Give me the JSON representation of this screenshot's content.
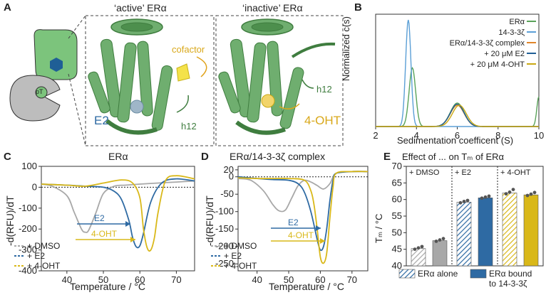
{
  "panels": {
    "A": {
      "label": "A",
      "active_title": "‘active’ ERα",
      "inactive_title": "‘inactive’ ERα",
      "cofactor": "cofactor",
      "e2": "E2",
      "h12_active": "h12",
      "h12_inactive": "h12",
      "ohot": "4-OHT",
      "pt": "pT"
    },
    "B": {
      "label": "B",
      "ylabel": "Normalized c(s)",
      "xlabel": "Sedimentation coefficent (S)",
      "xticks": [
        "2",
        "4",
        "6",
        "8",
        "10"
      ],
      "legend": [
        "ERα",
        "14-3-3ζ",
        "ERα/14-3-3ζ complex",
        "+ 20 μM E2",
        "+ 20 μM 4-OHT"
      ]
    },
    "C": {
      "label": "C",
      "title": "ERα",
      "ylabel": "-d(RFU)/dT",
      "xlabel": "Temperature / °C",
      "yticks": [
        "100",
        "0",
        "-100",
        "-200",
        "-300",
        "-400"
      ],
      "xticks": [
        "40",
        "50",
        "60",
        "70"
      ],
      "legend": [
        "+ DMSO",
        "+ E2",
        "+ 4-OHT"
      ],
      "arrow_e2": "E2",
      "arrow_ohot": "4-OHT"
    },
    "D": {
      "label": "D",
      "title": "ERα/14-3-3ζ complex",
      "ylabel": "-d(RFU)/dT",
      "xlabel": "Temperature / °C",
      "yticks": [
        "20",
        "0",
        "-50",
        "-100",
        "-150",
        "-200",
        "-250"
      ],
      "xticks": [
        "40",
        "50",
        "60",
        "70"
      ],
      "legend": [
        "+ DMSO",
        "+ E2",
        "+ 4-OHT"
      ],
      "arrow_e2": "E2",
      "arrow_ohot": "4-OHT"
    },
    "E": {
      "label": "E",
      "title": "Effect of ... on Tₘ of ERα",
      "ylabel": "Tₘ / °C",
      "yticks": [
        "70",
        "65",
        "60",
        "55",
        "50",
        "45",
        "40"
      ],
      "groups": [
        "+ DMSO",
        "+ E2",
        "+ 4-OHT"
      ],
      "legend_alone": "ERα alone",
      "legend_bound_1": "ERα bound",
      "legend_bound_2": "to 14-3-3ζ"
    }
  },
  "colors": {
    "gray": "#a8a8a8",
    "blue": "#2e6aa3",
    "yellow": "#d9b819",
    "green": "#5aa35a",
    "lightblue": "#5b9fd6",
    "orange": "#e0862a",
    "darkblue": "#1f5f96",
    "gold": "#c9a813"
  },
  "chart_data": [
    {
      "id": "B",
      "type": "line",
      "xlabel": "Sedimentation coefficent (S)",
      "ylabel": "Normalized c(s)",
      "xlim": [
        2,
        10
      ],
      "series": [
        {
          "name": "ERα",
          "peaks": [
            [
              3.8,
              0.55
            ],
            [
              6.0,
              0.22
            ],
            [
              10.0,
              0.28
            ]
          ]
        },
        {
          "name": "14-3-3ζ",
          "peaks": [
            [
              3.6,
              1.0
            ]
          ]
        },
        {
          "name": "ERα/14-3-3ζ complex",
          "peaks": [
            [
              6.0,
              0.2
            ]
          ]
        },
        {
          "name": "+ 20 μM E2",
          "peaks": [
            [
              6.0,
              0.21
            ]
          ]
        },
        {
          "name": "+ 20 μM 4-OHT",
          "peaks": [
            [
              6.1,
              0.2
            ]
          ]
        }
      ]
    },
    {
      "id": "C",
      "type": "line",
      "title": "ERα",
      "xlabel": "Temperature / °C",
      "ylabel": "-d(RFU)/dT",
      "xlim": [
        33,
        75
      ],
      "ylim": [
        -400,
        100
      ],
      "series": [
        {
          "name": "+ DMSO",
          "x": [
            33,
            36,
            40,
            42,
            44,
            45,
            46,
            48,
            50,
            53,
            56,
            60,
            65,
            70,
            75
          ],
          "y": [
            15,
            5,
            -40,
            -120,
            -200,
            -215,
            -205,
            -120,
            -30,
            5,
            10,
            15,
            20,
            25,
            30
          ]
        },
        {
          "name": "+ E2",
          "x": [
            33,
            40,
            45,
            50,
            53,
            55,
            57,
            58,
            59,
            60,
            61,
            63,
            66,
            70,
            75
          ],
          "y": [
            15,
            10,
            5,
            0,
            -20,
            -60,
            -160,
            -240,
            -285,
            -280,
            -220,
            -70,
            20,
            40,
            30
          ]
        },
        {
          "name": "+ 4-OHT",
          "x": [
            33,
            40,
            45,
            50,
            55,
            58,
            60,
            61,
            62,
            63,
            64,
            65,
            67,
            70,
            75
          ],
          "y": [
            15,
            10,
            5,
            20,
            35,
            20,
            -50,
            -200,
            -290,
            -300,
            -240,
            -120,
            30,
            55,
            40
          ]
        }
      ]
    },
    {
      "id": "D",
      "type": "line",
      "title": "ERα/14-3-3ζ complex",
      "xlabel": "Temperature / °C",
      "ylabel": "-d(RFU)/dT",
      "xlim": [
        34,
        75
      ],
      "ylim": [
        -270,
        30
      ],
      "series": [
        {
          "name": "+ DMSO",
          "x": [
            34,
            38,
            42,
            45,
            47,
            49,
            51,
            53,
            55,
            57,
            59,
            61,
            63,
            65,
            70,
            75
          ],
          "y": [
            -5,
            -10,
            -40,
            -80,
            -98,
            -95,
            -60,
            -25,
            -10,
            -15,
            -25,
            -35,
            -20,
            10,
            15,
            15
          ]
        },
        {
          "name": "+ E2",
          "x": [
            34,
            40,
            45,
            50,
            53,
            55,
            57,
            59,
            60,
            61,
            62,
            63,
            64,
            65,
            70,
            75
          ],
          "y": [
            0,
            -5,
            -8,
            -10,
            -20,
            -45,
            -100,
            -180,
            -210,
            -200,
            -150,
            -70,
            -10,
            10,
            15,
            15
          ]
        },
        {
          "name": "+ 4-OHT",
          "x": [
            34,
            40,
            45,
            50,
            55,
            57,
            58,
            59,
            60,
            61,
            62,
            63,
            64,
            65,
            70,
            75
          ],
          "y": [
            -3,
            -5,
            -5,
            -5,
            -10,
            -40,
            -80,
            -150,
            -230,
            -248,
            -220,
            -120,
            -30,
            10,
            15,
            15
          ]
        }
      ]
    },
    {
      "id": "E",
      "type": "bar",
      "title": "Effect of ... on Tₘ of ERα",
      "ylabel": "Tₘ / °C",
      "ylim": [
        40,
        70
      ],
      "categories": [
        "+ DMSO",
        "+ E2",
        "+ 4-OHT"
      ],
      "series": [
        {
          "name": "ERα alone",
          "values": [
            45.2,
            59.2,
            62.0
          ],
          "points": [
            [
              44.8,
              45.2,
              45.6
            ],
            [
              58.8,
              59.2,
              59.5
            ],
            [
              61.5,
              62.0,
              62.8
            ]
          ]
        },
        {
          "name": "ERα bound to 14-3-3ζ",
          "values": [
            47.6,
            60.5,
            61.4
          ],
          "points": [
            [
              47.2,
              47.6,
              48.0
            ],
            [
              60.2,
              60.5,
              60.8
            ],
            [
              61.0,
              61.4,
              61.9
            ]
          ]
        }
      ]
    }
  ]
}
